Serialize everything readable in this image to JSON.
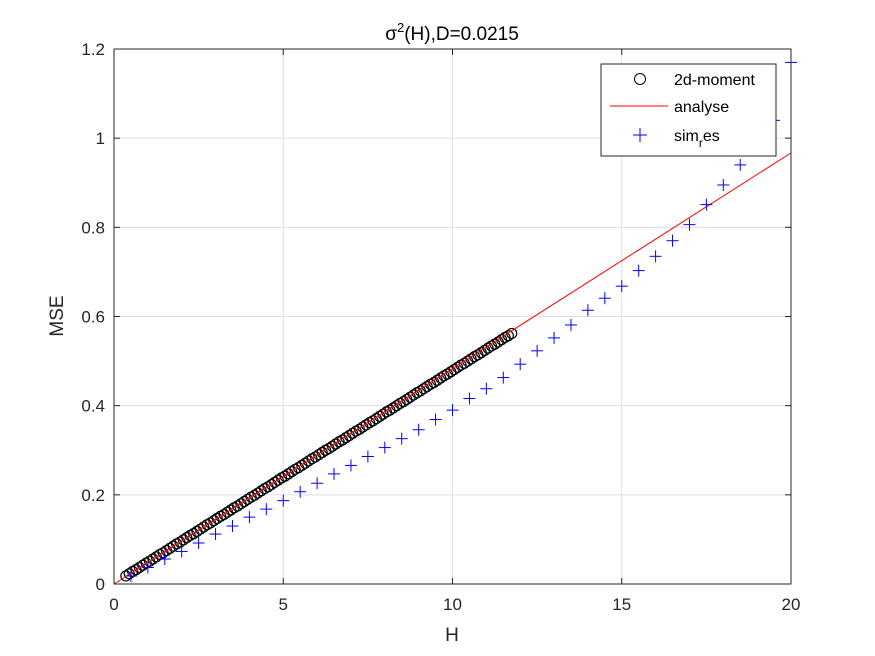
{
  "chart_data": {
    "type": "scatter",
    "title": {
      "main": "σ",
      "sup": "2",
      "rest": "(H),D=0.0215"
    },
    "xlabel": "H",
    "ylabel": "MSE",
    "xlim": [
      0,
      20
    ],
    "ylim": [
      0,
      1.2
    ],
    "xticks": [
      0,
      5,
      10,
      15,
      20
    ],
    "xtick_labels": [
      "0",
      "5",
      "10",
      "15",
      "20"
    ],
    "yticks": [
      0,
      0.2,
      0.4,
      0.6,
      0.8,
      1.0,
      1.2
    ],
    "ytick_labels": [
      "0",
      "0.2",
      "0.4",
      "0.6",
      "0.8",
      "1",
      "1.2"
    ],
    "grid": true,
    "legend_position": "top-right",
    "colors": {
      "moment": "#000000",
      "analyse": "#ff0000",
      "sim": "#0000ff",
      "axis": "#262626",
      "grid": "#dfdfdf"
    },
    "legend": [
      {
        "label": "2d-moment",
        "marker": "circle"
      },
      {
        "label": "analyse",
        "marker": "line"
      },
      {
        "label_main": "sim",
        "label_sub": "r",
        "label_rest": "es",
        "marker": "plus"
      }
    ],
    "series": [
      {
        "name": "2d-moment",
        "marker": "circle",
        "x": [
          0.35,
          0.45,
          0.55,
          0.65,
          0.75,
          0.85,
          0.95,
          1.05,
          1.15,
          1.25,
          1.35,
          1.45,
          1.55,
          1.65,
          1.75,
          1.85,
          1.95,
          2.05,
          2.15,
          2.25,
          2.35,
          2.45,
          2.55,
          2.65,
          2.75,
          2.85,
          2.95,
          3.05,
          3.15,
          3.25,
          3.35,
          3.45,
          3.55,
          3.65,
          3.75,
          3.85,
          3.95,
          4.05,
          4.15,
          4.25,
          4.35,
          4.45,
          4.55,
          4.65,
          4.75,
          4.85,
          4.95,
          5.05,
          5.15,
          5.25,
          5.35,
          5.45,
          5.55,
          5.65,
          5.75,
          5.85,
          5.95,
          6.05,
          6.15,
          6.25,
          6.35,
          6.45,
          6.55,
          6.65,
          6.75,
          6.85,
          6.95,
          7.05,
          7.15,
          7.25,
          7.35,
          7.45,
          7.55,
          7.65,
          7.75,
          7.85,
          7.95,
          8.05,
          8.15,
          8.25,
          8.35,
          8.45,
          8.55,
          8.65,
          8.75,
          8.85,
          8.95,
          9.05,
          9.15,
          9.25,
          9.35,
          9.45,
          9.55,
          9.65,
          9.75,
          9.85,
          9.95,
          10.05,
          10.15,
          10.25,
          10.35,
          10.45,
          10.55,
          10.65,
          10.75,
          10.85,
          10.95,
          11.05,
          11.15,
          11.25,
          11.35,
          11.45,
          11.55,
          11.65,
          11.75
        ],
        "y": [
          0.018,
          0.023,
          0.028,
          0.032,
          0.037,
          0.042,
          0.047,
          0.051,
          0.056,
          0.061,
          0.066,
          0.07,
          0.075,
          0.08,
          0.085,
          0.09,
          0.094,
          0.099,
          0.104,
          0.109,
          0.113,
          0.118,
          0.123,
          0.128,
          0.133,
          0.137,
          0.142,
          0.147,
          0.152,
          0.156,
          0.161,
          0.166,
          0.171,
          0.175,
          0.18,
          0.185,
          0.19,
          0.195,
          0.199,
          0.204,
          0.209,
          0.214,
          0.218,
          0.223,
          0.228,
          0.233,
          0.238,
          0.242,
          0.247,
          0.252,
          0.257,
          0.261,
          0.266,
          0.271,
          0.276,
          0.281,
          0.285,
          0.29,
          0.295,
          0.3,
          0.304,
          0.309,
          0.314,
          0.319,
          0.323,
          0.328,
          0.333,
          0.338,
          0.343,
          0.347,
          0.352,
          0.357,
          0.362,
          0.366,
          0.371,
          0.376,
          0.381,
          0.386,
          0.39,
          0.395,
          0.4,
          0.405,
          0.409,
          0.414,
          0.419,
          0.424,
          0.429,
          0.433,
          0.438,
          0.443,
          0.448,
          0.452,
          0.457,
          0.462,
          0.467,
          0.471,
          0.476,
          0.481,
          0.486,
          0.491,
          0.495,
          0.5,
          0.505,
          0.51,
          0.514,
          0.519,
          0.524,
          0.529,
          0.534,
          0.538,
          0.543,
          0.548,
          0.553,
          0.557,
          0.562
        ]
      },
      {
        "name": "analyse",
        "type": "line",
        "x": [
          0,
          20
        ],
        "y": [
          0.0,
          0.967
        ]
      },
      {
        "name": "sim_res",
        "marker": "plus",
        "x": [
          0.5,
          1.0,
          1.5,
          2.0,
          2.5,
          3.0,
          3.5,
          4.0,
          4.5,
          5.0,
          5.5,
          6.0,
          6.5,
          7.0,
          7.5,
          8.0,
          8.5,
          9.0,
          9.5,
          10.0,
          10.5,
          11.0,
          11.5,
          12.0,
          12.5,
          13.0,
          13.5,
          14.0,
          14.5,
          15.0,
          15.5,
          16.0,
          16.5,
          17.0,
          17.5,
          18.0,
          18.5,
          19.0,
          19.5,
          20.0
        ],
        "y": [
          0.018,
          0.037,
          0.056,
          0.073,
          0.092,
          0.112,
          0.13,
          0.15,
          0.168,
          0.187,
          0.207,
          0.226,
          0.247,
          0.266,
          0.286,
          0.306,
          0.326,
          0.346,
          0.369,
          0.39,
          0.416,
          0.438,
          0.463,
          0.493,
          0.523,
          0.552,
          0.581,
          0.614,
          0.641,
          0.668,
          0.703,
          0.735,
          0.77,
          0.806,
          0.851,
          0.895,
          0.94,
          0.99,
          1.04,
          1.17
        ]
      }
    ]
  }
}
